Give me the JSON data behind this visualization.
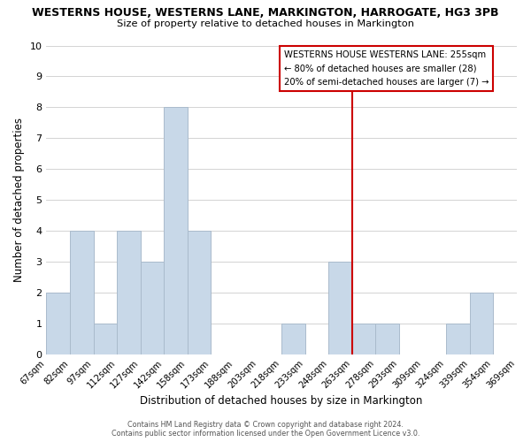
{
  "title": "WESTERNS HOUSE, WESTERNS LANE, MARKINGTON, HARROGATE, HG3 3PB",
  "subtitle": "Size of property relative to detached houses in Markington",
  "xlabel": "Distribution of detached houses by size in Markington",
  "ylabel": "Number of detached properties",
  "bins": [
    "67sqm",
    "82sqm",
    "97sqm",
    "112sqm",
    "127sqm",
    "142sqm",
    "158sqm",
    "173sqm",
    "188sqm",
    "203sqm",
    "218sqm",
    "233sqm",
    "248sqm",
    "263sqm",
    "278sqm",
    "293sqm",
    "309sqm",
    "324sqm",
    "339sqm",
    "354sqm",
    "369sqm"
  ],
  "values": [
    2,
    4,
    1,
    4,
    3,
    8,
    4,
    0,
    0,
    0,
    1,
    0,
    3,
    1,
    1,
    0,
    0,
    1,
    2,
    0
  ],
  "bar_color": "#c8d8e8",
  "bar_edgecolor": "#aabbcc",
  "highlight_line_color": "#cc0000",
  "highlight_bar_index": 12,
  "ylim": [
    0,
    10
  ],
  "yticks": [
    0,
    1,
    2,
    3,
    4,
    5,
    6,
    7,
    8,
    9,
    10
  ],
  "legend_title": "WESTERNS HOUSE WESTERNS LANE: 255sqm",
  "legend_line1": "← 80% of detached houses are smaller (28)",
  "legend_line2": "20% of semi-detached houses are larger (7) →",
  "footer_line1": "Contains HM Land Registry data © Crown copyright and database right 2024.",
  "footer_line2": "Contains public sector information licensed under the Open Government Licence v3.0.",
  "grid_color": "#cccccc"
}
